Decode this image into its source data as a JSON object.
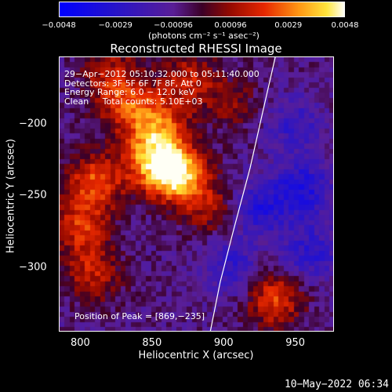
{
  "chart_data": {
    "type": "heatmap",
    "title": "Reconstructed RHESSI Image",
    "xlabel": "Heliocentric X (arcsec)",
    "ylabel": "Heliocentric Y (arcsec)",
    "xlim": [
      785,
      977
    ],
    "ylim": [
      -345,
      -153
    ],
    "x_ticks": [
      "800",
      "850",
      "900",
      "950"
    ],
    "x_tick_values": [
      800,
      850,
      900,
      950
    ],
    "y_ticks": [
      "−200",
      "−250",
      "−300"
    ],
    "y_tick_values": [
      -200,
      -250,
      -300
    ],
    "colorbar": {
      "ticks": [
        "−0.0048",
        "−0.0029",
        "−0.00096",
        "0.00096",
        "0.0029",
        "0.0048"
      ],
      "units": "(photons cm⁻² s⁻¹ asec⁻²)",
      "range": [
        -0.0048,
        0.0048
      ]
    },
    "annotations": [
      "29−Apr−2012 05:10:32.000 to 05:11:40.000",
      "Detectors: 3F 5F 6F 7F 8F, Att 0",
      "Energy Range: 6.0 − 12.0 keV",
      "Clean     Total counts: 5.10E+03"
    ],
    "peak_label": "Position of Peak = [869,−235]",
    "peak": [
      869,
      -235
    ],
    "sources": [
      {
        "x": 868,
        "y": -235,
        "value": 0.0048
      },
      {
        "x": 850,
        "y": -225,
        "value": 0.0038
      },
      {
        "x": 855,
        "y": -200,
        "value": 0.003
      },
      {
        "x": 832,
        "y": -188,
        "value": 0.0025
      },
      {
        "x": 810,
        "y": -240,
        "value": 0.0032
      },
      {
        "x": 800,
        "y": -272,
        "value": 0.0026
      },
      {
        "x": 808,
        "y": -305,
        "value": 0.0022
      },
      {
        "x": 820,
        "y": -165,
        "value": 0.002
      },
      {
        "x": 875,
        "y": -168,
        "value": 0.0022
      },
      {
        "x": 890,
        "y": -258,
        "value": 0.0018
      },
      {
        "x": 935,
        "y": -322,
        "value": 0.003
      },
      {
        "x": 905,
        "y": -185,
        "value": 0.0014
      },
      {
        "x": 925,
        "y": -258,
        "value": -0.0022
      },
      {
        "x": 955,
        "y": -245,
        "value": -0.0024
      },
      {
        "x": 960,
        "y": -290,
        "value": -0.002
      },
      {
        "x": 948,
        "y": -200,
        "value": -0.0016
      },
      {
        "x": 905,
        "y": -300,
        "value": -0.0018
      }
    ],
    "limb": [
      [
        935.5,
        -153
      ],
      [
        927,
        -190
      ],
      [
        918,
        -230
      ],
      [
        906,
        -275
      ],
      [
        897,
        -310
      ],
      [
        890,
        -345
      ]
    ]
  },
  "timestamp": "10−May−2022 06:34"
}
